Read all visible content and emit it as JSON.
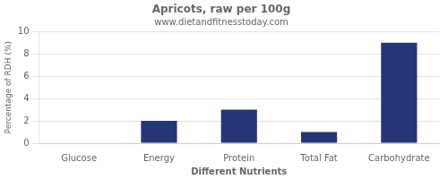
{
  "chart_data": {
    "type": "bar",
    "title": "Apricots, raw per 100g",
    "subtitle": "www.dietandfitnesstoday.com",
    "xlabel": "Different Nutrients",
    "ylabel": "Percentage of RDH (%)",
    "categories": [
      "Glucose",
      "Energy",
      "Protein",
      "Total Fat",
      "Carbohydrate"
    ],
    "values": [
      0,
      2,
      3,
      1,
      9
    ],
    "color": "#253676",
    "ylim": [
      0,
      10
    ],
    "yticks": [
      0,
      2,
      4,
      6,
      8,
      10
    ],
    "grid": true
  }
}
